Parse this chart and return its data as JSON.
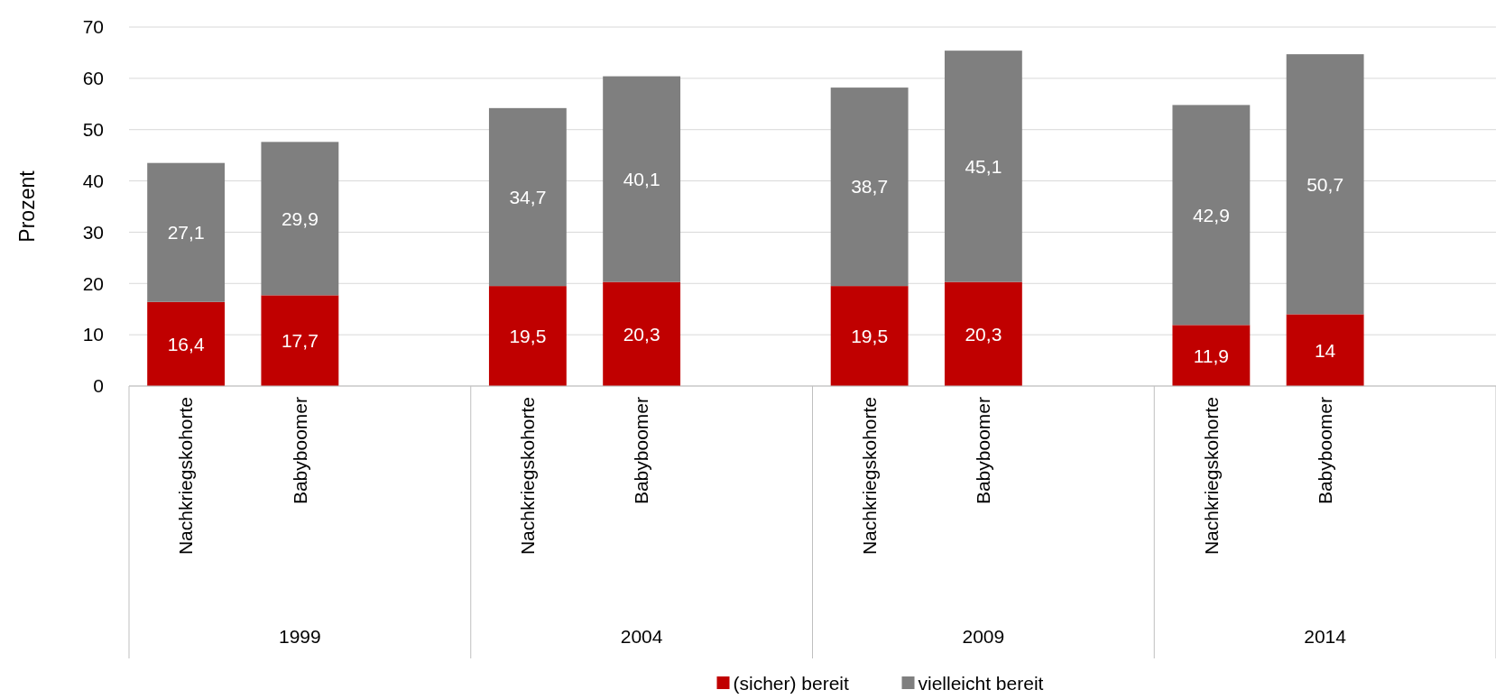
{
  "chart_data": {
    "type": "bar",
    "stacked": true,
    "ylabel": "Prozent",
    "categories": [
      "Nachkriegskohorte",
      "Babyboomer",
      null,
      "Nachkriegskohorte",
      "Babyboomer",
      null,
      "Nachkriegskohorte",
      "Babyboomer",
      null,
      "Nachkriegskohorte",
      "Babyboomer",
      null
    ],
    "annotations": [
      "1999",
      "2004",
      "2009",
      "2014"
    ],
    "series": [
      {
        "name": "(sicher) bereit",
        "color": "#c00000",
        "values": [
          16.4,
          17.7,
          null,
          19.5,
          20.3,
          null,
          19.5,
          20.3,
          null,
          11.9,
          14,
          null
        ],
        "value_labels": [
          "16,4",
          "17,7",
          null,
          "19,5",
          "20,3",
          null,
          "19,5",
          "20,3",
          null,
          "11,9",
          "14",
          null
        ]
      },
      {
        "name": "vielleicht bereit",
        "color": "#7f7f7f",
        "values": [
          27.1,
          29.9,
          null,
          34.7,
          40.1,
          null,
          38.7,
          45.1,
          null,
          42.9,
          50.7,
          null
        ],
        "value_labels": [
          "27,1",
          "29,9",
          null,
          "34,7",
          "40,1",
          null,
          "38,7",
          "45,1",
          null,
          "42,9",
          "50,7",
          null
        ]
      }
    ],
    "ylim": [
      0,
      70
    ],
    "yticks": [
      0,
      10,
      20,
      30,
      40,
      50,
      60,
      70
    ],
    "grid": "y",
    "legend": "bottom"
  }
}
